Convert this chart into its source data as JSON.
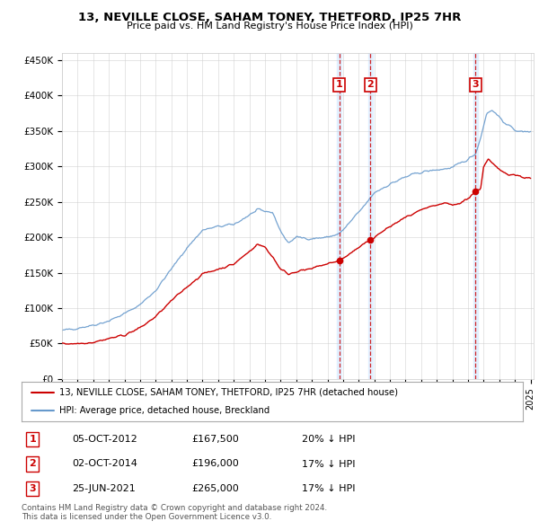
{
  "title": "13, NEVILLE CLOSE, SAHAM TONEY, THETFORD, IP25 7HR",
  "subtitle": "Price paid vs. HM Land Registry's House Price Index (HPI)",
  "ylabel_ticks": [
    "£0",
    "£50K",
    "£100K",
    "£150K",
    "£200K",
    "£250K",
    "£300K",
    "£350K",
    "£400K",
    "£450K"
  ],
  "ytick_values": [
    0,
    50000,
    100000,
    150000,
    200000,
    250000,
    300000,
    350000,
    400000,
    450000
  ],
  "ylim": [
    0,
    460000
  ],
  "xlim_start": 1995.0,
  "xlim_end": 2025.2,
  "legend_line1": "13, NEVILLE CLOSE, SAHAM TONEY, THETFORD, IP25 7HR (detached house)",
  "legend_line2": "HPI: Average price, detached house, Breckland",
  "transactions": [
    {
      "num": 1,
      "date": "05-OCT-2012",
      "x": 2012.76,
      "price": 167500,
      "pct": "20%",
      "dir": "↓"
    },
    {
      "num": 2,
      "date": "02-OCT-2014",
      "x": 2014.75,
      "price": 196000,
      "pct": "17%",
      "dir": "↓"
    },
    {
      "num": 3,
      "date": "25-JUN-2021",
      "x": 2021.48,
      "price": 265000,
      "pct": "17%",
      "dir": "↓"
    }
  ],
  "footer1": "Contains HM Land Registry data © Crown copyright and database right 2024.",
  "footer2": "This data is licensed under the Open Government Licence v3.0.",
  "red_color": "#cc0000",
  "blue_color": "#6699cc",
  "shade_color": "#ddeeff"
}
